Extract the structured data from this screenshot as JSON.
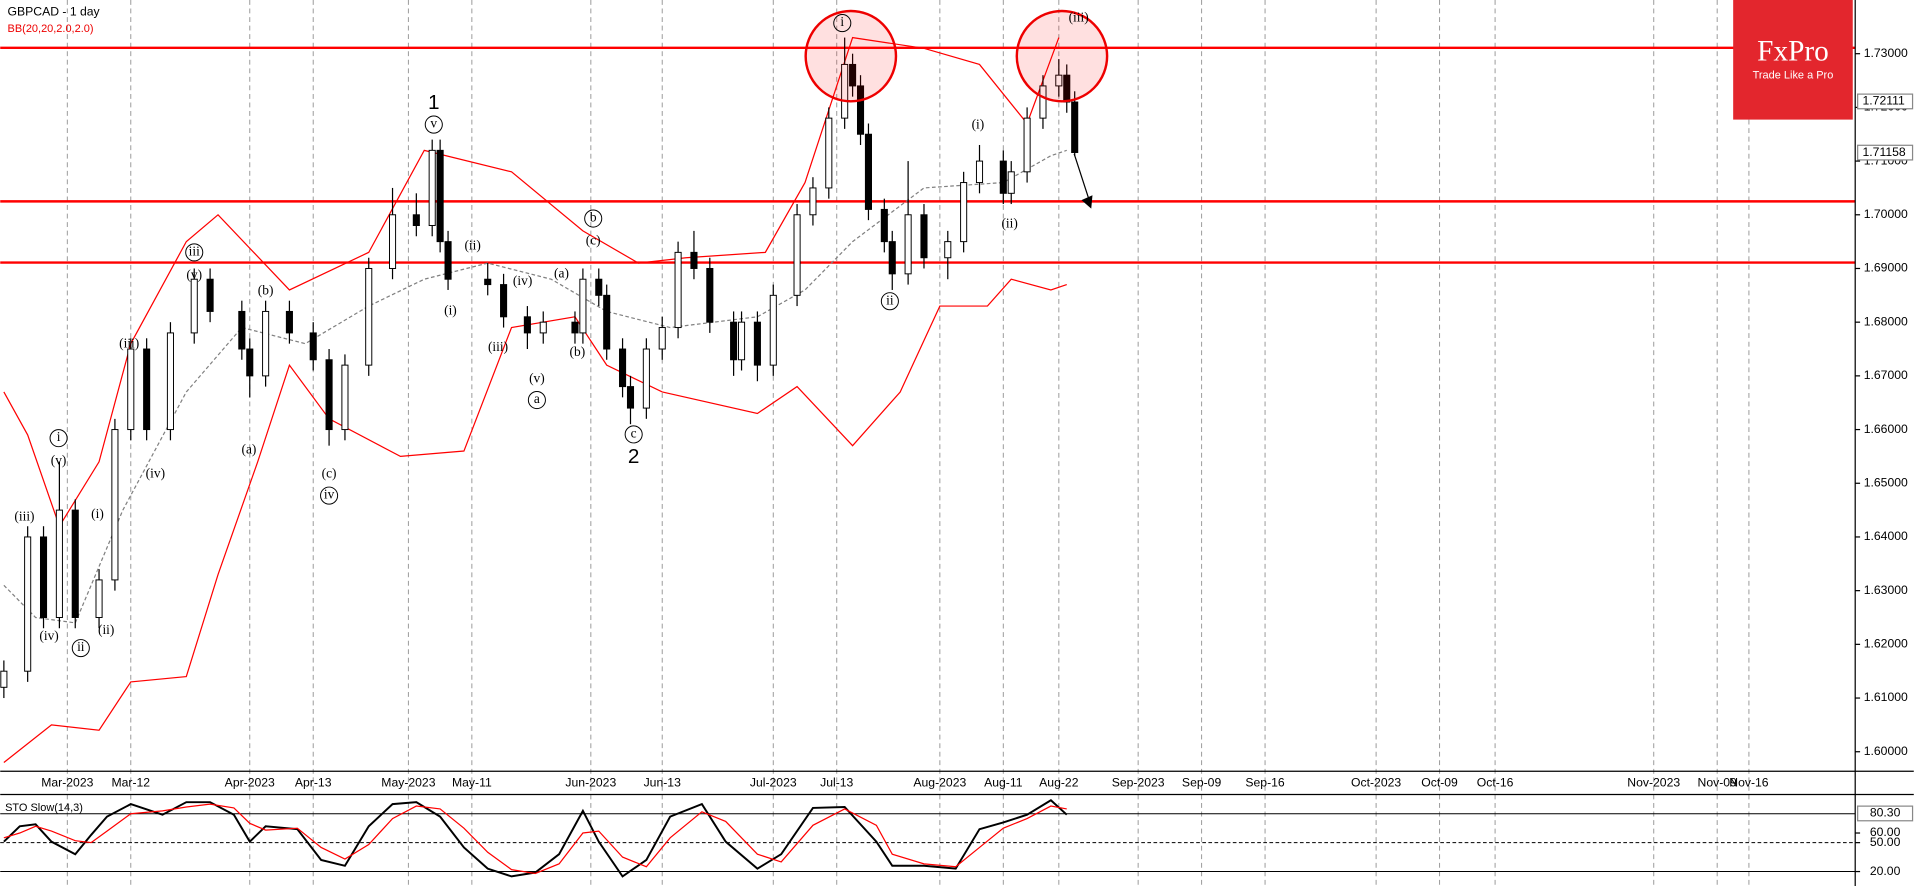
{
  "chart_data": [
    {
      "type": "candlestick",
      "title": "GBPCAD - 1 day",
      "indicator": "BB(20,20,2.0,2.0)",
      "x": [
        0,
        3,
        5,
        7,
        9,
        12,
        14,
        16,
        18,
        21,
        24,
        26,
        30,
        31,
        33,
        36,
        39,
        41,
        43,
        46,
        49,
        52,
        54,
        55,
        56,
        61,
        63,
        66,
        68,
        72,
        73,
        75,
        76,
        78,
        79,
        81,
        83,
        85,
        87,
        89,
        92,
        93,
        95,
        97,
        100,
        102,
        104,
        106,
        107,
        108,
        109,
        111,
        112,
        114,
        116,
        119,
        121,
        123,
        126,
        127,
        129,
        131,
        133,
        134,
        135
      ],
      "open": [
        1.612,
        1.615,
        1.64,
        1.625,
        1.645,
        1.625,
        1.632,
        1.66,
        1.675,
        1.66,
        1.678,
        1.688,
        1.682,
        1.675,
        1.67,
        1.682,
        1.678,
        1.673,
        1.66,
        1.672,
        1.69,
        1.7,
        1.698,
        1.712,
        1.695,
        1.688,
        1.687,
        1.681,
        1.678,
        1.68,
        1.678,
        1.688,
        1.685,
        1.675,
        1.668,
        1.664,
        1.675,
        1.679,
        1.693,
        1.69,
        1.68,
        1.673,
        1.68,
        1.672,
        1.685,
        1.7,
        1.705,
        1.718,
        1.728,
        1.724,
        1.715,
        1.701,
        1.695,
        1.689,
        1.7,
        1.692,
        1.695,
        1.706,
        1.71,
        1.704,
        1.708,
        1.718,
        1.724,
        1.726,
        1.721
      ],
      "high": [
        1.617,
        1.642,
        1.642,
        1.654,
        1.647,
        1.634,
        1.662,
        1.677,
        1.677,
        1.68,
        1.69,
        1.69,
        1.684,
        1.677,
        1.684,
        1.684,
        1.68,
        1.675,
        1.674,
        1.692,
        1.705,
        1.704,
        1.714,
        1.714,
        1.697,
        1.691,
        1.689,
        1.683,
        1.682,
        1.682,
        1.69,
        1.69,
        1.687,
        1.677,
        1.67,
        1.677,
        1.681,
        1.695,
        1.697,
        1.692,
        1.682,
        1.682,
        1.682,
        1.687,
        1.702,
        1.707,
        1.72,
        1.733,
        1.73,
        1.726,
        1.717,
        1.703,
        1.697,
        1.71,
        1.702,
        1.697,
        1.708,
        1.713,
        1.712,
        1.71,
        1.72,
        1.726,
        1.729,
        1.728,
        1.723
      ],
      "low": [
        1.61,
        1.613,
        1.623,
        1.623,
        1.623,
        1.623,
        1.63,
        1.658,
        1.658,
        1.658,
        1.676,
        1.68,
        1.673,
        1.666,
        1.668,
        1.676,
        1.671,
        1.657,
        1.658,
        1.67,
        1.688,
        1.696,
        1.696,
        1.693,
        1.686,
        1.685,
        1.679,
        1.675,
        1.676,
        1.676,
        1.676,
        1.683,
        1.673,
        1.666,
        1.661,
        1.662,
        1.673,
        1.677,
        1.688,
        1.678,
        1.67,
        1.671,
        1.669,
        1.67,
        1.683,
        1.698,
        1.703,
        1.716,
        1.722,
        1.713,
        1.699,
        1.693,
        1.686,
        1.687,
        1.69,
        1.688,
        1.693,
        1.704,
        1.702,
        1.702,
        1.706,
        1.716,
        1.722,
        1.719,
        1.711
      ],
      "close": [
        1.615,
        1.64,
        1.625,
        1.645,
        1.625,
        1.632,
        1.66,
        1.675,
        1.66,
        1.678,
        1.688,
        1.682,
        1.675,
        1.67,
        1.682,
        1.678,
        1.673,
        1.66,
        1.672,
        1.69,
        1.7,
        1.698,
        1.712,
        1.695,
        1.688,
        1.687,
        1.681,
        1.678,
        1.68,
        1.678,
        1.688,
        1.685,
        1.675,
        1.668,
        1.664,
        1.675,
        1.679,
        1.693,
        1.69,
        1.68,
        1.673,
        1.68,
        1.672,
        1.685,
        1.7,
        1.705,
        1.718,
        1.728,
        1.724,
        1.715,
        1.701,
        1.695,
        1.689,
        1.7,
        1.692,
        1.695,
        1.706,
        1.71,
        1.704,
        1.708,
        1.718,
        1.724,
        1.726,
        1.721,
        1.7116
      ],
      "up_color": "#ffffff",
      "down_color": "#000000",
      "overlays": [
        {
          "color": "#ff0000",
          "dashed": false,
          "x": [
            0,
            3,
            7,
            12,
            16,
            23,
            27,
            36,
            46,
            53,
            64,
            73,
            80,
            86,
            96,
            101,
            107,
            116,
            123,
            129,
            133
          ],
          "values": [
            1.667,
            1.659,
            1.642,
            1.654,
            1.676,
            1.695,
            1.7,
            1.686,
            1.693,
            1.712,
            1.708,
            1.697,
            1.691,
            1.692,
            1.693,
            1.706,
            1.733,
            1.731,
            1.728,
            1.717,
            1.733
          ]
        },
        {
          "color": "#808080",
          "dashed": true,
          "x": [
            0,
            4,
            9,
            15,
            23,
            30,
            38,
            46,
            53,
            61,
            69,
            76,
            84,
            95,
            101,
            107,
            116,
            126,
            132,
            134
          ],
          "values": [
            1.631,
            1.625,
            1.624,
            1.645,
            1.667,
            1.679,
            1.676,
            1.683,
            1.688,
            1.691,
            1.688,
            1.682,
            1.679,
            1.681,
            1.686,
            1.695,
            1.705,
            1.706,
            1.711,
            1.712
          ]
        },
        {
          "color": "#ff0000",
          "dashed": false,
          "x": [
            0,
            6,
            12,
            16,
            23,
            27,
            32,
            36,
            41,
            50,
            58,
            64,
            72,
            76,
            83,
            95,
            100,
            107,
            113,
            118,
            124,
            127,
            132,
            134
          ],
          "values": [
            1.598,
            1.605,
            1.604,
            1.613,
            1.614,
            1.633,
            1.654,
            1.672,
            1.662,
            1.655,
            1.656,
            1.679,
            1.681,
            1.672,
            1.667,
            1.663,
            1.668,
            1.657,
            1.667,
            1.683,
            1.683,
            1.688,
            1.686,
            1.687
          ]
        }
      ],
      "levels": [
        1.7311,
        1.7025,
        1.6911
      ],
      "level_color": "#ff0000",
      "price_markers": [
        {
          "value": 1.72111,
          "label": "1.72111"
        },
        {
          "value": 1.71158,
          "label": "1.71158"
        }
      ],
      "xlim": [
        -0.46,
        233.4
      ],
      "xticks": [
        {
          "value": 8,
          "label": "Mar-2023"
        },
        {
          "value": 16,
          "label": "Mar-12"
        },
        {
          "value": 31,
          "label": "Apr-2023"
        },
        {
          "value": 39,
          "label": "Apr-13"
        },
        {
          "value": 51,
          "label": "May-2023"
        },
        {
          "value": 59,
          "label": "May-11"
        },
        {
          "value": 74,
          "label": "Jun-2023"
        },
        {
          "value": 83,
          "label": "Jun-13"
        },
        {
          "value": 97,
          "label": "Jul-2023"
        },
        {
          "value": 105,
          "label": "Jul-13"
        },
        {
          "value": 118,
          "label": "Aug-2023"
        },
        {
          "value": 126,
          "label": "Aug-11"
        },
        {
          "value": 133,
          "label": "Aug-22"
        },
        {
          "value": 143,
          "label": "Sep-2023"
        },
        {
          "value": 151,
          "label": "Sep-09"
        },
        {
          "value": 159,
          "label": "Sep-16"
        },
        {
          "value": 173,
          "label": "Oct-2023"
        },
        {
          "value": 181,
          "label": "Oct-09"
        },
        {
          "value": 188,
          "label": "Oct-16"
        },
        {
          "value": 208,
          "label": "Nov-2023"
        },
        {
          "value": 216,
          "label": "Nov-09"
        },
        {
          "value": 220,
          "label": "Nov-16"
        }
      ],
      "ylim": [
        1.59636,
        1.74
      ],
      "yticks": [
        {
          "value": 1.73,
          "label": "1.73000"
        },
        {
          "value": 1.72,
          "label": "1.72000"
        },
        {
          "value": 1.71,
          "label": "1.71000"
        },
        {
          "value": 1.7,
          "label": "1.70000"
        },
        {
          "value": 1.69,
          "label": "1.69000"
        },
        {
          "value": 1.68,
          "label": "1.68000"
        },
        {
          "value": 1.67,
          "label": "1.67000"
        },
        {
          "value": 1.66,
          "label": "1.66000"
        },
        {
          "value": 1.65,
          "label": "1.65000"
        },
        {
          "value": 1.64,
          "label": "1.64000"
        },
        {
          "value": 1.63,
          "label": "1.63000"
        },
        {
          "value": 1.62,
          "label": "1.62000"
        },
        {
          "value": 1.61,
          "label": "1.61000"
        },
        {
          "value": 1.6,
          "label": "1.60000"
        }
      ],
      "annotations": [
        {
          "text": "(iii)",
          "x": 2.6,
          "y": 1.6436,
          "circled": false
        },
        {
          "text": "(iv)",
          "x": 5.7,
          "y": 1.6214,
          "circled": false
        },
        {
          "text": "ii",
          "x": 9.7,
          "y": 1.6193,
          "circled": true
        },
        {
          "text": "(ii)",
          "x": 12.9,
          "y": 1.6225,
          "circled": false
        },
        {
          "text": "(i)",
          "x": 11.8,
          "y": 1.6441,
          "circled": false
        },
        {
          "text": "i",
          "x": 6.9,
          "y": 1.6584,
          "circled": true
        },
        {
          "text": "(v)",
          "x": 6.9,
          "y": 1.6541,
          "circled": false
        },
        {
          "text": "(iii)",
          "x": 15.8,
          "y": 1.6759,
          "circled": false
        },
        {
          "text": "(iv)",
          "x": 19.1,
          "y": 1.6516,
          "circled": false
        },
        {
          "text": "iii",
          "x": 24,
          "y": 1.693,
          "circled": true
        },
        {
          "text": "(v)",
          "x": 24,
          "y": 1.6886,
          "circled": false
        },
        {
          "text": "(b)",
          "x": 33,
          "y": 1.6857,
          "circled": false
        },
        {
          "text": "(a)",
          "x": 30.9,
          "y": 1.6561,
          "circled": false
        },
        {
          "text": "(c)",
          "x": 41,
          "y": 1.6516,
          "circled": false
        },
        {
          "text": "iv",
          "x": 41,
          "y": 1.6477,
          "circled": true
        },
        {
          "text": "1",
          "x": 54.2,
          "y": 1.7207,
          "circled": false,
          "large": true
        },
        {
          "text": "v",
          "x": 54.2,
          "y": 1.7168,
          "circled": true
        },
        {
          "text": "(ii)",
          "x": 59.1,
          "y": 1.6941,
          "circled": false
        },
        {
          "text": "(i)",
          "x": 56.3,
          "y": 1.682,
          "circled": false
        },
        {
          "text": "(iv)",
          "x": 65.4,
          "y": 1.6875,
          "circled": false
        },
        {
          "text": "(iii)",
          "x": 62.3,
          "y": 1.6752,
          "circled": false
        },
        {
          "text": "(v)",
          "x": 67.2,
          "y": 1.6693,
          "circled": false
        },
        {
          "text": "a",
          "x": 67.2,
          "y": 1.6655,
          "circled": true
        },
        {
          "text": "(a)",
          "x": 70.3,
          "y": 1.6889,
          "circled": false
        },
        {
          "text": "(b)",
          "x": 72.3,
          "y": 1.6743,
          "circled": false
        },
        {
          "text": "b",
          "x": 74.3,
          "y": 1.6993,
          "circled": true
        },
        {
          "text": "(c)",
          "x": 74.3,
          "y": 1.695,
          "circled": false
        },
        {
          "text": "c",
          "x": 79.4,
          "y": 1.6591,
          "circled": true
        },
        {
          "text": "2",
          "x": 79.4,
          "y": 1.6548,
          "circled": false,
          "large": true
        },
        {
          "text": "i",
          "x": 105.7,
          "y": 1.7357,
          "circled": true
        },
        {
          "text": "(iii)",
          "x": 135.5,
          "y": 1.7366,
          "circled": false
        },
        {
          "text": "(i)",
          "x": 122.8,
          "y": 1.7166,
          "circled": false
        },
        {
          "text": "(ii)",
          "x": 126.8,
          "y": 1.6982,
          "circled": false
        },
        {
          "text": "ii",
          "x": 111.7,
          "y": 1.6839,
          "circled": true
        }
      ]
    },
    {
      "type": "stochastic",
      "title": "STO Slow(14,3)",
      "x": [
        0,
        2,
        4,
        6,
        9,
        11,
        13,
        16,
        20,
        23,
        26,
        29,
        31,
        33,
        37,
        40,
        43,
        46,
        49,
        52,
        55,
        58,
        61,
        64,
        67,
        70,
        73,
        75,
        78,
        81,
        84,
        88,
        91,
        95,
        98,
        102,
        106,
        110,
        112,
        116,
        120,
        123,
        126,
        129,
        132,
        134
      ],
      "series": [
        {
          "color": "#000000",
          "values": [
            51,
            67,
            69,
            51,
            38,
            58,
            77,
            90,
            79,
            92,
            92,
            79,
            51,
            67,
            64,
            32,
            26,
            67,
            90,
            92,
            77,
            45,
            23,
            15,
            19,
            38,
            83,
            51,
            15,
            32,
            77,
            90,
            51,
            23,
            38,
            86,
            87,
            51,
            26,
            26,
            23,
            64,
            71,
            79,
            94,
            79
          ]
        },
        {
          "color": "#ff0000",
          "values": [
            55,
            60,
            67,
            62,
            52,
            50,
            62,
            80,
            83,
            87,
            90,
            86,
            70,
            63,
            65,
            45,
            33,
            48,
            75,
            88,
            85,
            65,
            40,
            22,
            18,
            28,
            60,
            62,
            35,
            25,
            55,
            82,
            72,
            38,
            30,
            68,
            85,
            68,
            38,
            28,
            25,
            45,
            65,
            75,
            88,
            85
          ]
        }
      ],
      "xlim": [
        -0.46,
        233.4
      ],
      "ylim": [
        5,
        100
      ],
      "yticks": [
        {
          "value": 60,
          "label": "60.00"
        },
        {
          "value": 50,
          "label": "50.00"
        },
        {
          "value": 20,
          "label": "20.00"
        }
      ],
      "levels": [
        80,
        50,
        20
      ],
      "level_dashed": [
        false,
        true,
        false
      ],
      "last_value": {
        "value": 80.3,
        "label": "80.30"
      }
    }
  ],
  "logo": {
    "name": "FxPro",
    "tagline": "Trade Like a Pro"
  }
}
